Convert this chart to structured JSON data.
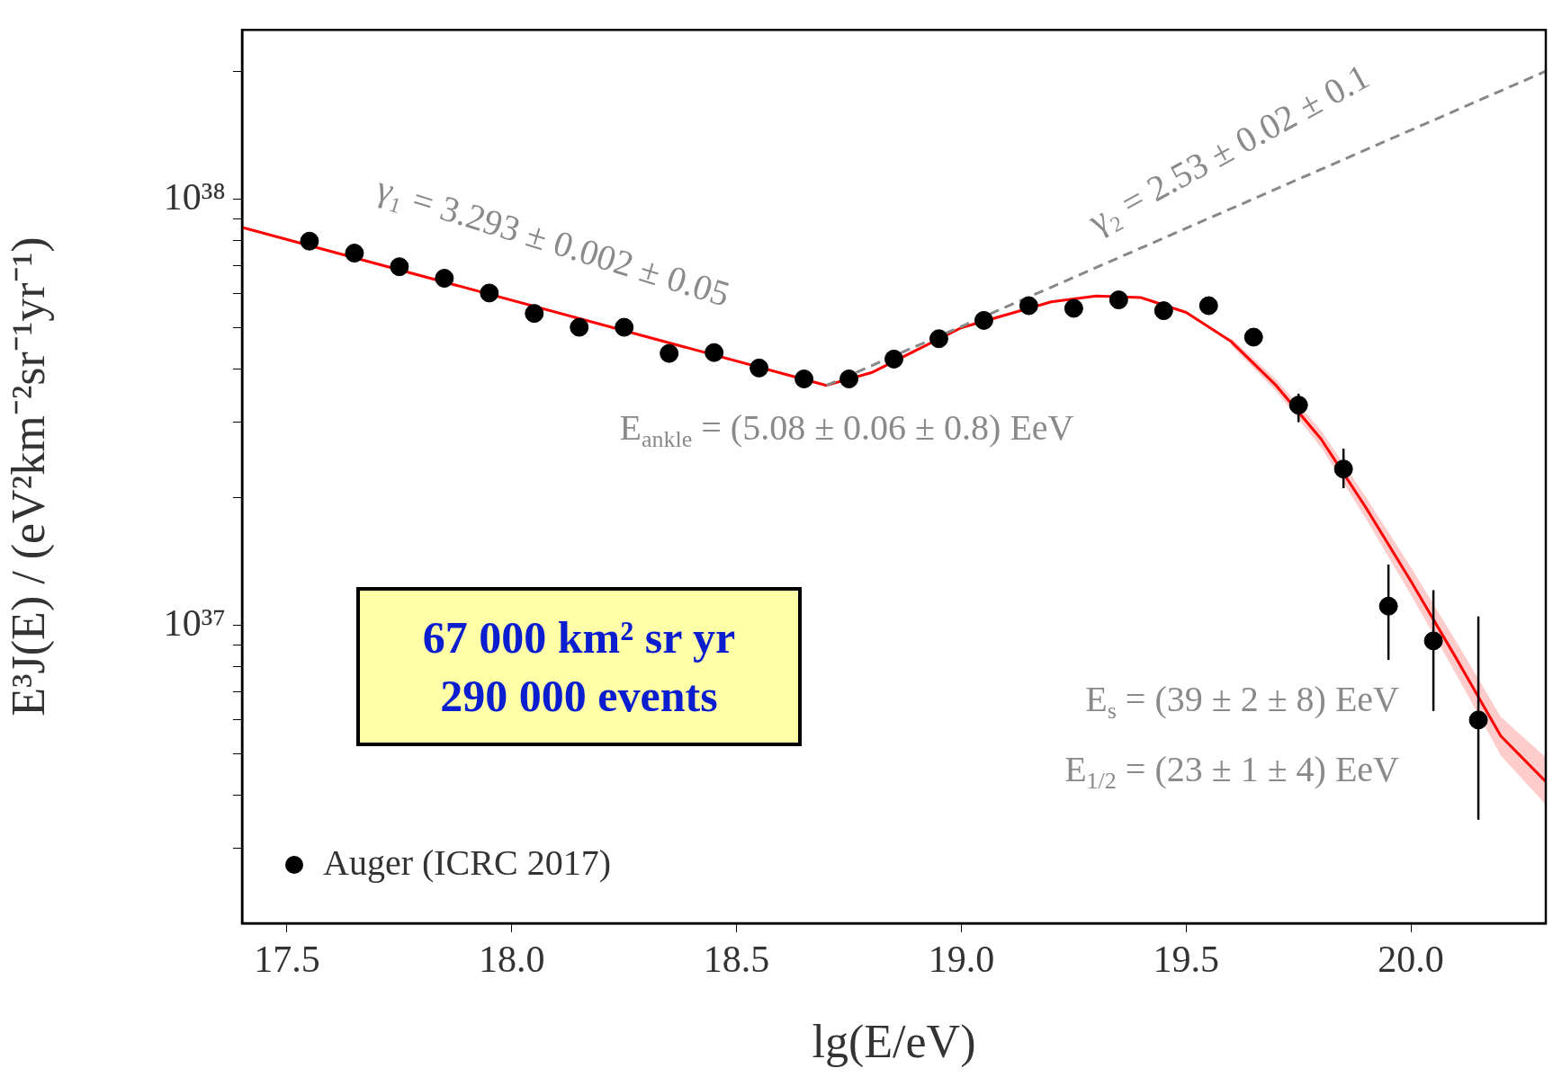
{
  "chart_data": {
    "type": "scatter",
    "xlabel": "lg(E/eV)",
    "ylabel": "E³J(E) / (eV²km⁻²sr⁻¹yr⁻¹)",
    "log": "y",
    "xlim": [
      17.4,
      20.3
    ],
    "ylim": [
      2e+36,
      2.5e+38
    ],
    "xticks": [
      {
        "value": 17.5,
        "label": "17.5"
      },
      {
        "value": 18,
        "label": "18.0"
      },
      {
        "value": 18.5,
        "label": "18.5"
      },
      {
        "value": 19,
        "label": "19.0"
      },
      {
        "value": 19.5,
        "label": "19.5"
      },
      {
        "value": 20,
        "label": "20.0"
      }
    ],
    "yticks": [
      {
        "value": 3e+36,
        "label": null
      },
      {
        "value": 4e+36,
        "label": null
      },
      {
        "value": 5e+36,
        "label": null
      },
      {
        "value": 6e+36,
        "label": null
      },
      {
        "value": 7e+36,
        "label": null
      },
      {
        "value": 8e+36,
        "label": null
      },
      {
        "value": 9e+36,
        "label": null
      },
      {
        "value": 1e+37,
        "label": "10³⁷"
      },
      {
        "value": 2e+37,
        "label": null
      },
      {
        "value": 3e+37,
        "label": null
      },
      {
        "value": 4e+37,
        "label": null
      },
      {
        "value": 5e+37,
        "label": null
      },
      {
        "value": 6e+37,
        "label": null
      },
      {
        "value": 7e+37,
        "label": null
      },
      {
        "value": 8e+37,
        "label": null
      },
      {
        "value": 9e+37,
        "label": null
      },
      {
        "value": 1e+38,
        "label": "10³⁸"
      },
      {
        "value": 2e+38,
        "label": null
      }
    ],
    "legend": "bottom left",
    "series": [
      {
        "name": "Auger (ICRC 2017)",
        "type": "scatter",
        "marker": "circle",
        "color": "#000000",
        "x": [
          17.55,
          17.65,
          17.75,
          17.85,
          17.95,
          18.05,
          18.15,
          18.25,
          18.35,
          18.45,
          18.55,
          18.65,
          18.75,
          18.85,
          18.95,
          19.05,
          19.15,
          19.25,
          19.35,
          19.45,
          19.55,
          19.65,
          19.75,
          19.85,
          19.95,
          20.05,
          20.15
        ],
        "values": [
          7.98e+37,
          7.48e+37,
          6.95e+37,
          6.53e+37,
          6.03e+37,
          5.4e+37,
          5.01e+37,
          5.01e+37,
          4.35e+37,
          4.37e+37,
          4.02e+37,
          3.79e+37,
          3.79e+37,
          4.22e+37,
          4.71e+37,
          5.2e+37,
          5.63e+37,
          5.55e+37,
          5.81e+37,
          5.48e+37,
          5.63e+37,
          4.75e+37,
          3.29e+37,
          2.33e+37,
          1.11e+37,
          9.2e+36,
          6e+36
        ],
        "errors": [
          null,
          null,
          null,
          null,
          null,
          null,
          null,
          null,
          null,
          null,
          null,
          null,
          null,
          null,
          null,
          null,
          null,
          null,
          null,
          null,
          null,
          null,
          [
            3e+37,
            3.5e+37
          ],
          [
            2.1e+37,
            2.6e+37
          ],
          [
            8.3e+36,
            1.39e+37
          ],
          [
            6.3e+36,
            1.21e+37
          ],
          [
            3.5e+36,
            1.05e+37
          ]
        ]
      },
      {
        "type": "line",
        "color": "#ff0000",
        "x": [
          17.4,
          18.7,
          18.8,
          19.0,
          19.2,
          19.3,
          19.4,
          19.5,
          19.6,
          19.7,
          19.8,
          19.9,
          20.0,
          20.1,
          20.2,
          20.3
        ],
        "values": [
          8.6e+37,
          3.66e+37,
          3.92e+37,
          5e+37,
          5.75e+37,
          5.93e+37,
          5.88e+37,
          5.43e+37,
          4.64e+37,
          3.66e+37,
          2.74e+37,
          1.89e+37,
          1.27e+37,
          8.4e+36,
          5.5e+36,
          4.3e+36
        ],
        "lower": [
          null,
          null,
          null,
          null,
          null,
          null,
          null,
          null,
          4.55e+37,
          3.55e+37,
          2.62e+37,
          1.78e+37,
          1.18e+37,
          7.7e+36,
          4.95e+36,
          3.8e+36
        ],
        "upper": [
          null,
          null,
          null,
          null,
          null,
          null,
          null,
          null,
          4.73e+37,
          3.78e+37,
          2.87e+37,
          2e+37,
          1.37e+37,
          9.2e+36,
          6.1e+36,
          4.9e+36
        ]
      },
      {
        "type": "line",
        "color": "#888888",
        "line_style": "dashed",
        "x": [
          18.7,
          20.3
        ],
        "values": [
          3.66e+37,
          2e+38
        ]
      }
    ],
    "annotations": [
      "γ₁ = 3.293 ± 0.002 ± 0.05",
      "γ₂ = 2.53 ± 0.02 ± 0.1",
      "E$_{ankle}$ = (5.08 ± 0.06 ± 0.8) EeV",
      "E$_{s}$ = (39 ± 2 ± 8) EeV",
      "E$_{1/2}$ = (23 ± 1 ± 4) EeV",
      "67 000 km² sr yr",
      "290 000 events"
    ]
  }
}
